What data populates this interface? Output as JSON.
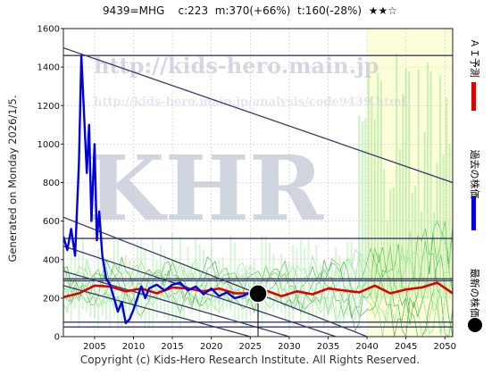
{
  "title": "9439=MHG    c:223  m:370(+66%)  t:160(-28%)  ★★☆",
  "side_label": "Generated on Monday 2026/1/5.",
  "legend": [
    {
      "label": "ＡＩ予測",
      "color": "#e00000"
    },
    {
      "label": "過去の株価",
      "color": "#0000e0"
    },
    {
      "label": "最新の株価",
      "color": "#000000"
    }
  ],
  "footer": "Copyright (c) Kids-Hero Research Institute. All Rights Reserved.",
  "watermark": {
    "big": "KHR",
    "url": "http://kids-hero.main.jp",
    "url2": "http://kids-hero.main.jp/analysis/code9439.html"
  },
  "chart_data": {
    "type": "line",
    "xlim": [
      2001,
      2051
    ],
    "ylim": [
      0,
      1600
    ],
    "x_ticks": [
      2005,
      2010,
      2015,
      2020,
      2025,
      2030,
      2035,
      2040,
      2045,
      2050
    ],
    "y_ticks": [
      0,
      200,
      400,
      600,
      800,
      1000,
      1200,
      1400,
      1600
    ],
    "grid": true,
    "latest": {
      "x": 2026.0,
      "y": 223
    },
    "horizontal_levels": [
      1460,
      510,
      300,
      290,
      75,
      50
    ],
    "trend_lines": [
      {
        "x": [
          2001,
          2051
        ],
        "y": [
          1500,
          800
        ]
      },
      {
        "x": [
          2001,
          2040
        ],
        "y": [
          620,
          0
        ]
      },
      {
        "x": [
          2001,
          2036
        ],
        "y": [
          470,
          0
        ]
      },
      {
        "x": [
          2001,
          2030
        ],
        "y": [
          340,
          0
        ]
      },
      {
        "x": [
          2001,
          2025
        ],
        "y": [
          265,
          0
        ]
      }
    ],
    "series": [
      {
        "name": "ＡＩ予測",
        "color": "#e00000",
        "x": [
          2001,
          2003,
          2005,
          2007,
          2009,
          2011,
          2013,
          2015,
          2017,
          2019,
          2021,
          2023,
          2025,
          2027,
          2029,
          2031,
          2033,
          2035,
          2037,
          2039,
          2041,
          2043,
          2045,
          2047,
          2049,
          2051
        ],
        "y": [
          205,
          225,
          265,
          260,
          235,
          250,
          225,
          255,
          250,
          235,
          250,
          225,
          225,
          240,
          210,
          235,
          220,
          250,
          240,
          230,
          265,
          225,
          245,
          255,
          280,
          225
        ]
      },
      {
        "name": "過去の株価",
        "color": "#0000e0",
        "x": [
          2001,
          2001.5,
          2002,
          2002.5,
          2003,
          2003.3,
          2003.6,
          2004,
          2004.3,
          2004.6,
          2005,
          2005.3,
          2005.6,
          2006,
          2006.5,
          2007,
          2007.5,
          2008,
          2008.5,
          2009,
          2009.5,
          2010,
          2010.5,
          2011,
          2011.5,
          2012,
          2013,
          2014,
          2015,
          2016,
          2017,
          2018,
          2019,
          2020,
          2021,
          2022,
          2023,
          2024,
          2025,
          2025.5
        ],
        "y": [
          520,
          450,
          560,
          420,
          900,
          1460,
          1200,
          850,
          1100,
          600,
          1000,
          500,
          650,
          420,
          300,
          270,
          200,
          130,
          180,
          70,
          90,
          140,
          200,
          260,
          200,
          250,
          270,
          240,
          270,
          280,
          240,
          260,
          220,
          250,
          210,
          230,
          200,
          210,
          230,
          223
        ]
      }
    ]
  }
}
